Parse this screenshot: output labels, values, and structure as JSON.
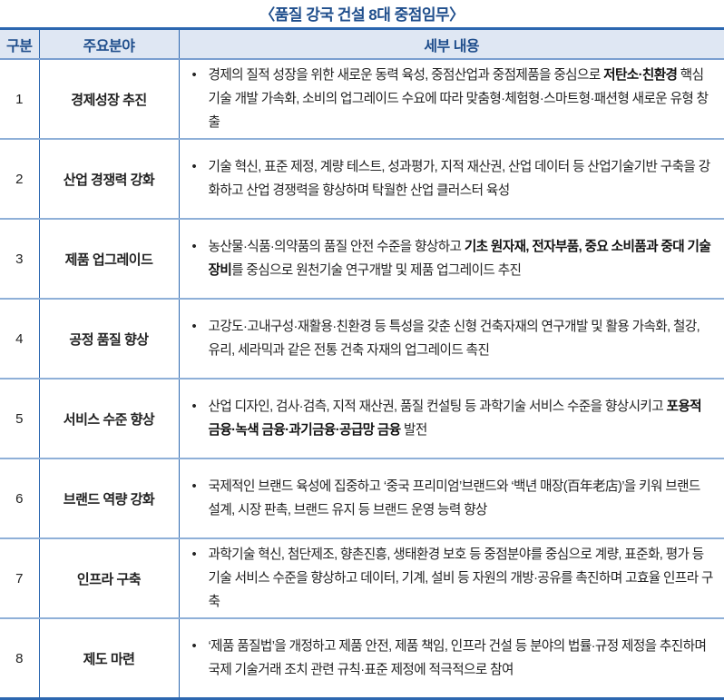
{
  "title": "〈품질 강국 건설 8대 중점임무〉",
  "headers": [
    "구분",
    "주요분야",
    "세부 내용"
  ],
  "rows": [
    {
      "no": "1",
      "area": "경제성장 추진",
      "parts": [
        {
          "text": "경제의 질적 성장을 위한 새로운 동력 육성, 중점산업과 중점제품을 중심으로 ",
          "bold": false
        },
        {
          "text": "저탄소·친환경",
          "bold": true
        },
        {
          "text": " 핵심기술 개발 가속화, 소비의 업그레이드 수요에 따라 맞춤형·체험형·스마트형·패션형 새로운 유형 창출",
          "bold": false
        }
      ]
    },
    {
      "no": "2",
      "area": "산업 경쟁력 강화",
      "parts": [
        {
          "text": "기술 혁신, 표준 제정, 계량 테스트, 성과평가, 지적 재산권, 산업 데이터 등 산업기술기반 구축을 강화하고 산업 경쟁력을 향상하며 탁월한 산업 클러스터 육성",
          "bold": false
        }
      ]
    },
    {
      "no": "3",
      "area": "제품 업그레이드",
      "parts": [
        {
          "text": "농산물·식품·의약품의 품질 안전 수준을 향상하고 ",
          "bold": false
        },
        {
          "text": "기초 원자재, 전자부품, 중요 소비품과 중대 기술 장비",
          "bold": true
        },
        {
          "text": "를 중심으로 원천기술 연구개발 및 제품 업그레이드 추진",
          "bold": false
        }
      ]
    },
    {
      "no": "4",
      "area": "공정 품질 향상",
      "parts": [
        {
          "text": "고강도·고내구성·재활용·친환경 등 특성을 갖춘 신형 건축자재의 연구개발 및 활용 가속화, 철강, 유리, 세라믹과 같은 전통 건축 자재의 업그레이드 촉진",
          "bold": false
        }
      ]
    },
    {
      "no": "5",
      "area": "서비스 수준 향상",
      "parts": [
        {
          "text": "산업 디자인, 검사·검측, 지적 재산권, 품질 컨설팅 등 과학기술 서비스 수준을 향상시키고 ",
          "bold": false
        },
        {
          "text": "포용적 금융·녹색 금융·과기금융·공급망 금융",
          "bold": true
        },
        {
          "text": " 발전",
          "bold": false
        }
      ]
    },
    {
      "no": "6",
      "area": "브랜드 역량 강화",
      "parts": [
        {
          "text": "국제적인 브랜드 육성에 집중하고 ‘중국 프리미엄’브랜드와 ‘백년 매장(百年老店)’을 키워 브랜드 설계, 시장 판촉, 브랜드 유지 등 브랜드 운영 능력 향상",
          "bold": false
        }
      ]
    },
    {
      "no": "7",
      "area": "인프라 구축",
      "parts": [
        {
          "text": "과학기술 혁신, 첨단제조, 향촌진흥, 생태환경 보호 등 중점분야를 중심으로 계량, 표준화, 평가 등 기술 서비스 수준을 향상하고 데이터, 기계, 설비 등 자원의 개방·공유를 촉진하며 고효율 인프라 구축",
          "bold": false
        }
      ]
    },
    {
      "no": "8",
      "area": "제도 마련",
      "parts": [
        {
          "text": "‘제품 품질법’을 개정하고 제품 안전, 제품 책임, 인프라 건설 등 분야의 법률·규정 제정을 추진하며 국제 기술거래 조치 관련 규칙·표준 제정에 적극적으로 참여",
          "bold": false
        }
      ]
    }
  ],
  "colors": {
    "accent": "#2c67b0",
    "header_bg": "#dfe7f3",
    "header_text": "#1f4e8c"
  }
}
